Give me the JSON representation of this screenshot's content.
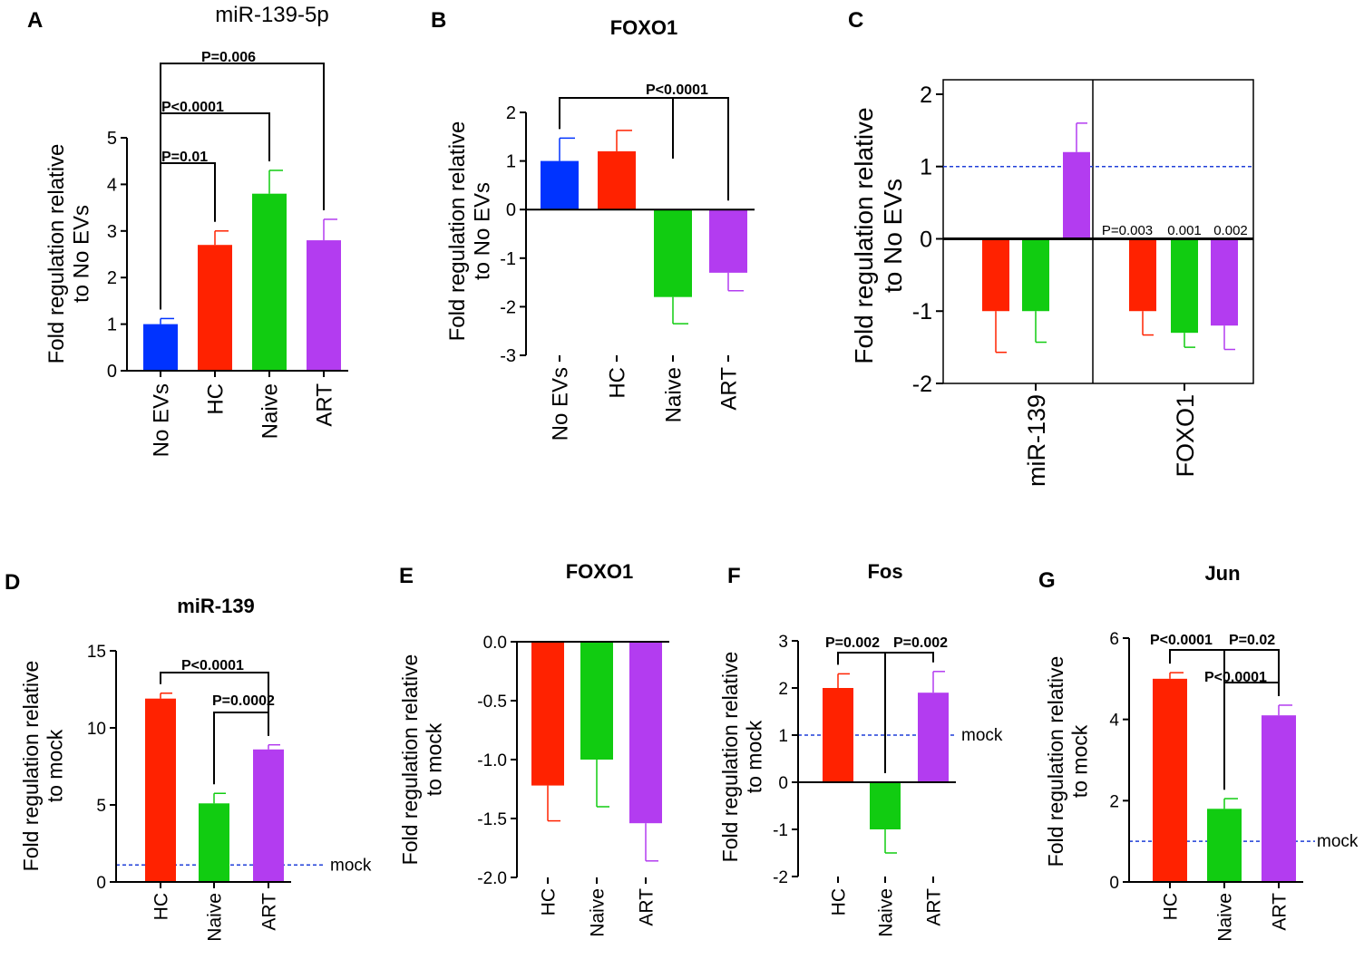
{
  "colors": {
    "no_evs": "#0033FF",
    "hc": "#FF2200",
    "naive": "#11CC11",
    "art": "#B33CF0",
    "mock_line": "#1F3FD8",
    "axis": "#000000"
  },
  "chart_data": [
    {
      "panel": "A",
      "type": "bar",
      "title": "miR-139-5p",
      "ylabel_lines": [
        "Fold regulation relative",
        "to No EVs"
      ],
      "categories": [
        "No EVs",
        "HC",
        "Naive",
        "ART"
      ],
      "values": [
        1.0,
        2.7,
        3.8,
        2.8
      ],
      "errors": [
        0.12,
        0.3,
        0.5,
        0.45
      ],
      "color_keys": [
        "no_evs",
        "hc",
        "naive",
        "art"
      ],
      "ylim": [
        0,
        5
      ],
      "yticks": [
        0,
        1,
        2,
        3,
        4,
        5
      ],
      "brackets": [
        {
          "label": "P=0.01",
          "from": 0,
          "to": 1
        },
        {
          "label": "P<0.0001",
          "from": 0,
          "to": 2
        },
        {
          "label": "P=0.006",
          "from": 0,
          "to": 3
        }
      ]
    },
    {
      "panel": "B",
      "type": "bar",
      "title": "FOXO1",
      "ylabel_lines": [
        "Fold regulation relative",
        "to No EVs"
      ],
      "categories": [
        "No EVs",
        "HC",
        "Naive",
        "ART"
      ],
      "values": [
        1.0,
        1.2,
        -1.8,
        -1.3
      ],
      "errors": [
        0.47,
        0.43,
        0.55,
        0.37
      ],
      "color_keys": [
        "no_evs",
        "hc",
        "naive",
        "art"
      ],
      "ylim": [
        -3,
        2
      ],
      "yticks": [
        -3,
        -2,
        -1,
        0,
        1,
        2
      ],
      "brackets": [
        {
          "label": "P<0.0001",
          "from": 0,
          "to": 3
        }
      ]
    },
    {
      "panel": "C",
      "type": "bar",
      "title": "",
      "ylabel_lines": [
        "Fold regulation relative",
        "to No EVs"
      ],
      "groups": [
        "miR-139",
        "FOXO1"
      ],
      "series_colors": [
        "hc",
        "naive",
        "art"
      ],
      "values": [
        [
          -1.0,
          -1.0,
          1.2
        ],
        [
          -1.0,
          -1.3,
          -1.2
        ]
      ],
      "errors": [
        [
          0.57,
          0.43,
          0.4
        ],
        [
          0.33,
          0.2,
          0.33
        ]
      ],
      "ylim": [
        -2,
        2.2
      ],
      "yticks": [
        -2,
        -1,
        0,
        1,
        2
      ],
      "reference_line": 1,
      "pvalues": [
        "P=0.003",
        "0.001",
        "0.002"
      ]
    },
    {
      "panel": "D",
      "type": "bar",
      "title": "miR-139",
      "ylabel_lines": [
        "Fold regulation relative",
        "to mock"
      ],
      "categories": [
        "HC",
        "Naive",
        "ART"
      ],
      "values": [
        11.9,
        5.1,
        8.6
      ],
      "errors": [
        0.35,
        0.65,
        0.3
      ],
      "color_keys": [
        "hc",
        "naive",
        "art"
      ],
      "ylim": [
        0,
        15
      ],
      "yticks": [
        0,
        5,
        10,
        15
      ],
      "reference_line": 1.1,
      "reference_label": "mock",
      "brackets": [
        {
          "label": "P<0.0001",
          "from": 0,
          "to": 2
        },
        {
          "label": "P=0.0002",
          "from": 1,
          "to": 2
        }
      ]
    },
    {
      "panel": "E",
      "type": "bar",
      "title": "FOXO1",
      "ylabel_lines": [
        "Fold regulation relative",
        "to mock"
      ],
      "categories": [
        "HC",
        "Naive",
        "ART"
      ],
      "values": [
        -1.22,
        -1.0,
        -1.54
      ],
      "errors": [
        0.3,
        0.4,
        0.32
      ],
      "color_keys": [
        "hc",
        "naive",
        "art"
      ],
      "ylim": [
        -2.0,
        0.0
      ],
      "yticks": [
        -2.0,
        -1.5,
        -1.0,
        -0.5,
        0.0
      ],
      "ytick_labels": [
        "-2.0",
        "-1.5",
        "-1.0",
        "-0.5",
        "0.0"
      ]
    },
    {
      "panel": "F",
      "type": "bar",
      "title": "Fos",
      "ylabel_lines": [
        "Fold regulation relative",
        "to mock"
      ],
      "categories": [
        "HC",
        "Naive",
        "ART"
      ],
      "values": [
        2.0,
        -1.0,
        1.9
      ],
      "errors": [
        0.3,
        0.5,
        0.45
      ],
      "color_keys": [
        "hc",
        "naive",
        "art"
      ],
      "ylim": [
        -2,
        3
      ],
      "yticks": [
        -2,
        -1,
        0,
        1,
        2,
        3
      ],
      "reference_line": 1,
      "reference_label": "mock",
      "brackets": [
        {
          "label": "P=0.002",
          "from": 0,
          "to": 1
        },
        {
          "label": "P=0.002",
          "from": 1,
          "to": 2
        }
      ]
    },
    {
      "panel": "G",
      "type": "bar",
      "title": "Jun",
      "ylabel_lines": [
        "Fold regulation relative",
        "to mock"
      ],
      "categories": [
        "HC",
        "Naive",
        "ART"
      ],
      "values": [
        5.0,
        1.8,
        4.1
      ],
      "errors": [
        0.15,
        0.25,
        0.25
      ],
      "color_keys": [
        "hc",
        "naive",
        "art"
      ],
      "ylim": [
        0,
        6
      ],
      "yticks": [
        0,
        2,
        4,
        6
      ],
      "reference_line": 1,
      "reference_label": "mock",
      "brackets": [
        {
          "label": "P<0.0001",
          "from": 0,
          "to": 1
        },
        {
          "label": "P=0.02",
          "from": 1,
          "to": 2
        },
        {
          "label": "P<0.0001",
          "from": 1,
          "to": 2
        }
      ]
    }
  ]
}
